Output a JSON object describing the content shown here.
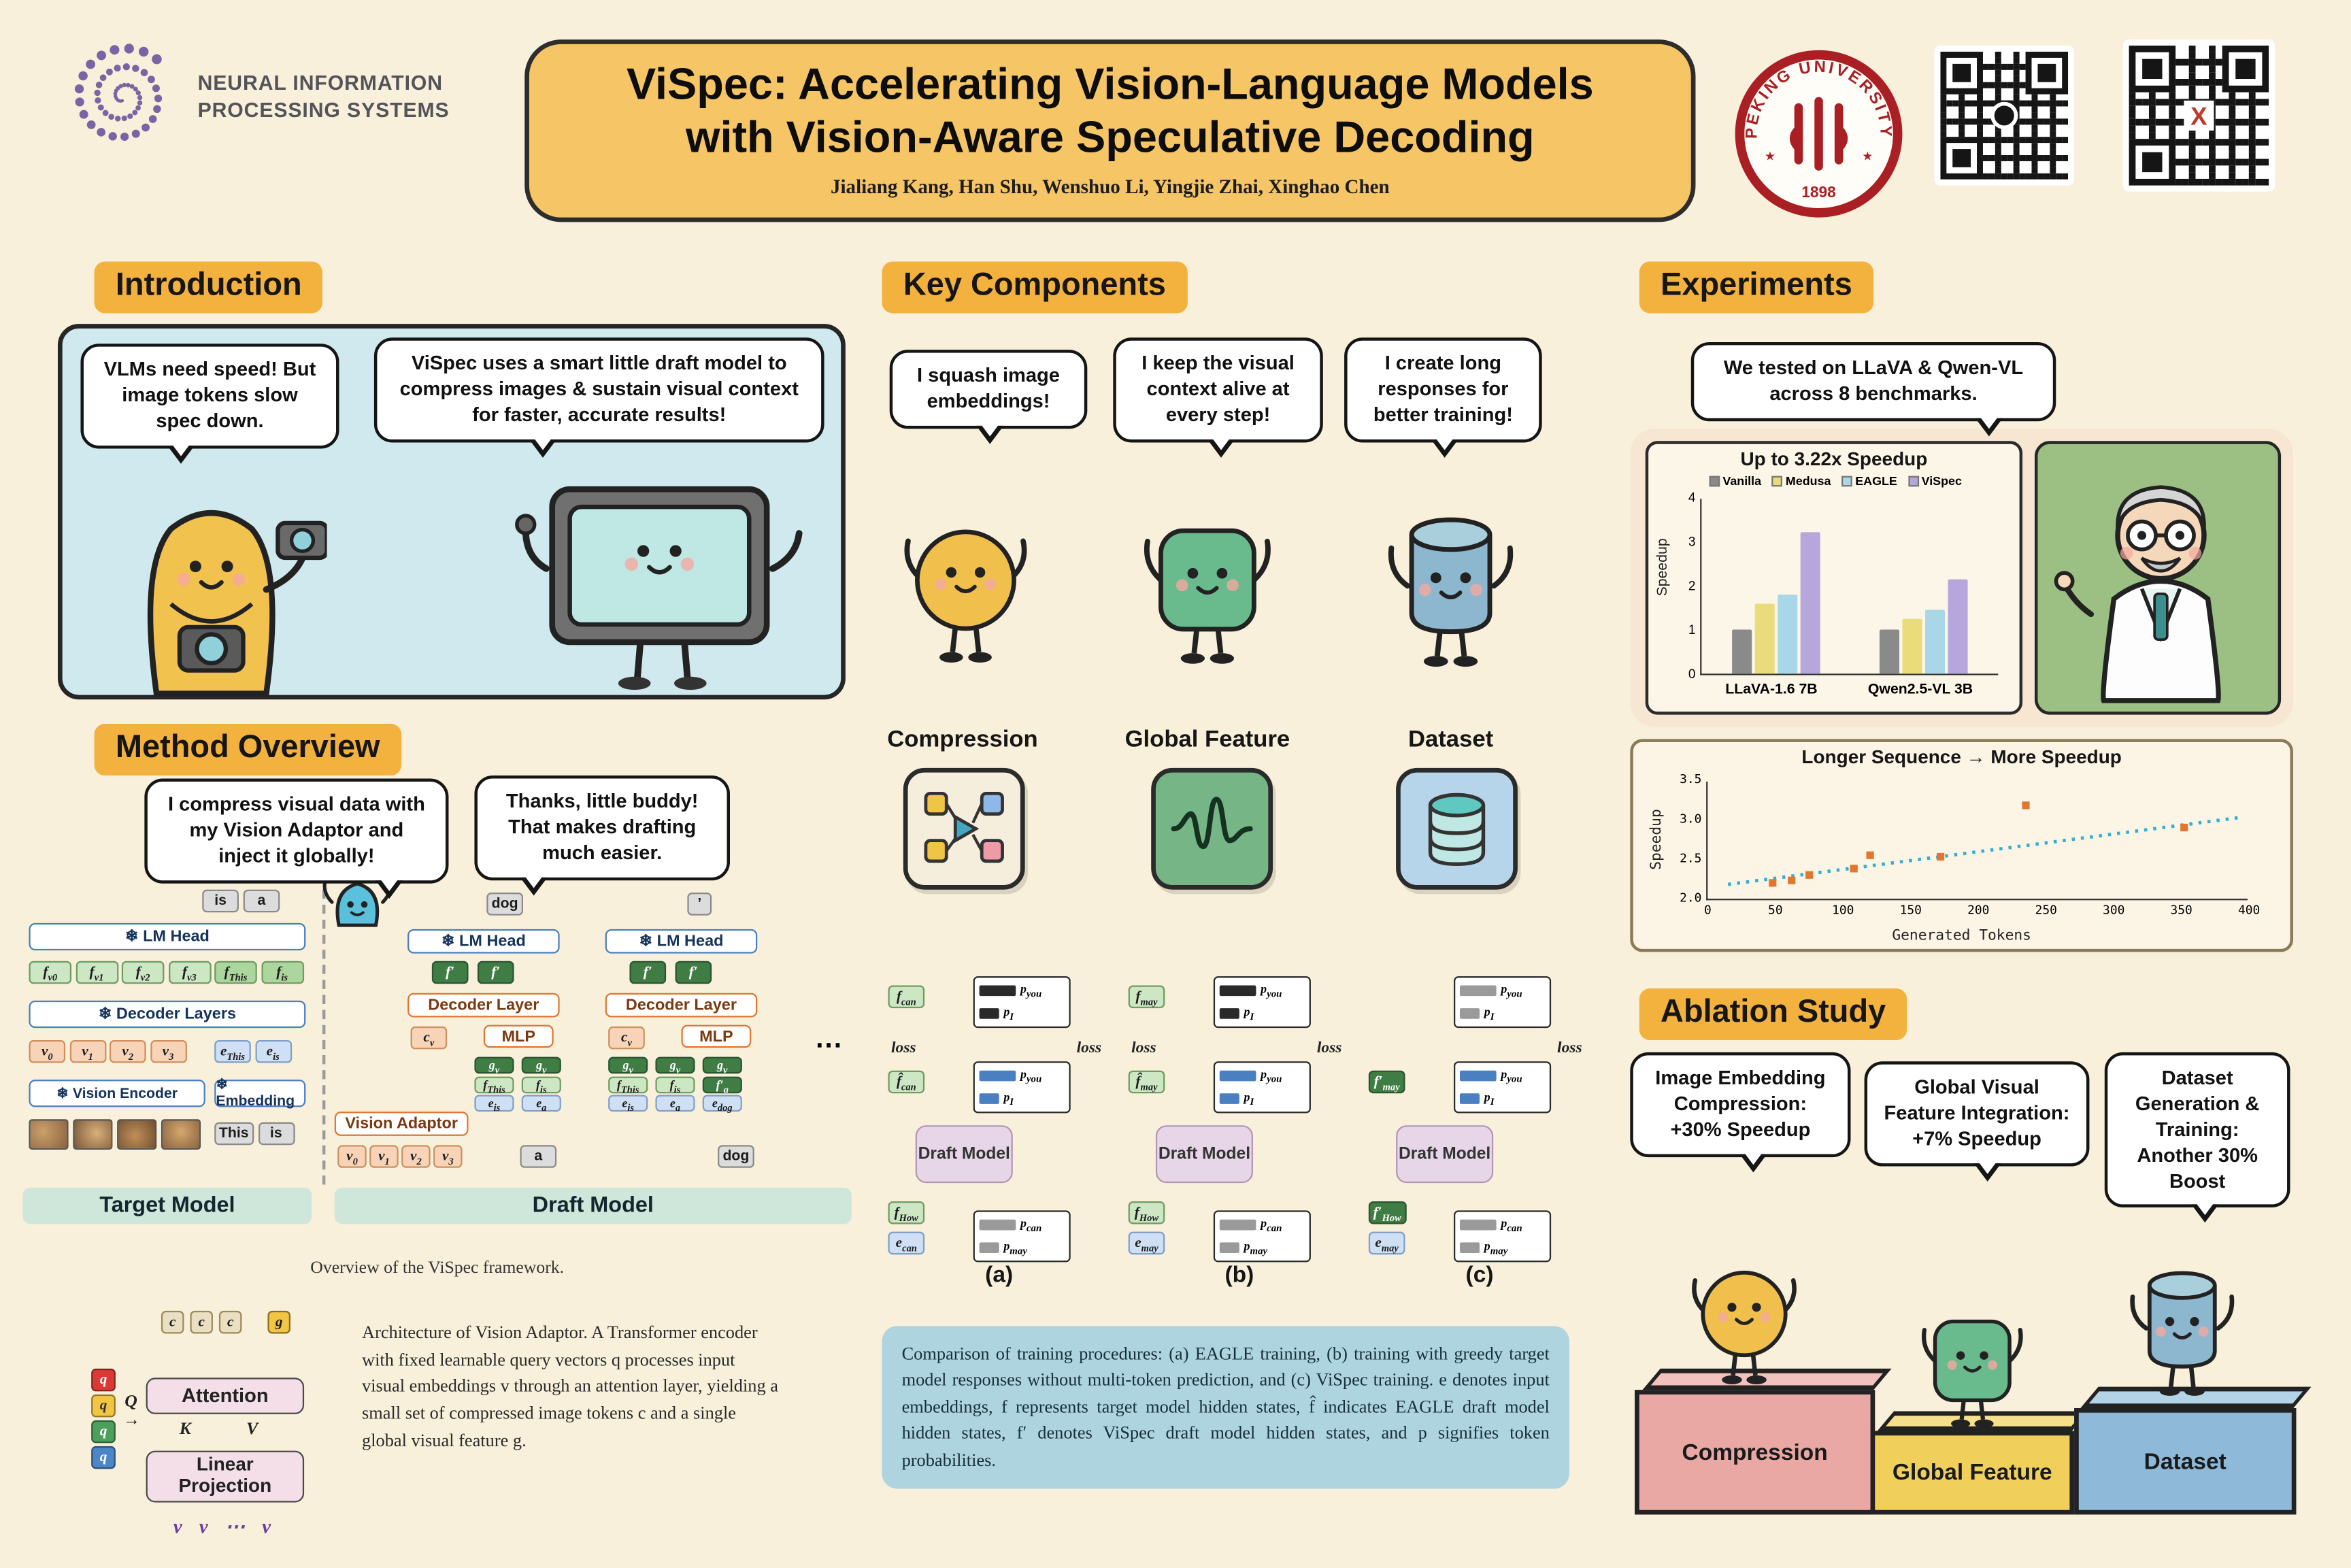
{
  "header": {
    "logo_line1": "NEURAL INFORMATION",
    "logo_line2": "PROCESSING SYSTEMS",
    "title_line1": "ViSpec: Accelerating Vision-Language Models",
    "title_line2": "with Vision-Aware Speculative Decoding",
    "authors": "Jialiang Kang, Han Shu, Wenshuo Li, Yingjie Zhai, Xinghao Chen",
    "seal_text": "PEKING UNIVERSITY",
    "seal_year": "1898"
  },
  "introduction": {
    "heading": "Introduction",
    "bubble_left": "VLMs need speed! But image tokens slow spec down.",
    "bubble_right": "ViSpec uses a smart little draft model to compress images & sustain visual context for faster, accurate results!"
  },
  "method": {
    "heading": "Method Overview",
    "bubble_left": "I compress visual data with my Vision Adaptor and inject it globally!",
    "bubble_right": "Thanks, little buddy! That makes drafting much easier.",
    "caption": "Overview of the ViSpec framework.",
    "target": {
      "label": "Target Model",
      "top_tokens": [
        "is",
        "a"
      ],
      "lm_head": "❄ LM Head",
      "f_tokens": [
        "f_v0",
        "f_v1",
        "f_v2",
        "f_v3",
        "f_This",
        "f_is"
      ],
      "decoder": "❄ Decoder Layers",
      "v_tokens": [
        "v_0",
        "v_1",
        "v_2",
        "v_3"
      ],
      "e_tokens": [
        "e_This",
        "e_is"
      ],
      "vision_encoder": "❄ Vision Encoder",
      "embedding": "❄ Embedding",
      "input_tokens": [
        "This",
        "is"
      ]
    },
    "draft": {
      "label": "Draft Model",
      "lm_head": "❄ LM Head",
      "decoder": "Decoder Layer",
      "mlp": "MLP",
      "cv": "c_v",
      "vision_adaptor": "Vision Adaptor",
      "va_inputs": [
        "v_0",
        "v_1",
        "v_2",
        "v_3"
      ],
      "out_token": "dog",
      "quote_token": "’",
      "ellipsis": "⋯",
      "columns": [
        {
          "f_out": [
            "f′",
            "f′"
          ],
          "stacks": [
            [
              "g_v",
              "f_This",
              "e_is"
            ],
            [
              "g_v",
              "f_is",
              "e_a"
            ]
          ],
          "input": "a"
        },
        {
          "f_out": [
            "f′",
            "f′"
          ],
          "stacks": [
            [
              "g_v",
              "f_This",
              "e_is"
            ],
            [
              "g_v",
              "f_is",
              "e_a"
            ],
            [
              "g_v",
              "f′_a",
              "e_dog"
            ]
          ],
          "input": "dog"
        }
      ]
    },
    "adaptor": {
      "c_tokens": [
        "c",
        "c",
        "c"
      ],
      "g_token": "g",
      "attention": "Attention",
      "linear_line1": "Linear",
      "linear_line2": "Projection",
      "q_tokens": [
        "q",
        "q",
        "q",
        "q"
      ],
      "q_label": "Q",
      "k_label": "K",
      "v_label": "V",
      "arrow": "→",
      "v_row": "v v ⋯ v",
      "description": "Architecture of Vision Adaptor. A Transformer encoder with fixed learnable query vectors q processes input visual embeddings v through an attention layer, yielding a small set of compressed image tokens c and a single global visual feature g."
    }
  },
  "key_components": {
    "heading": "Key Components",
    "items": [
      {
        "bubble": "I squash image embeddings!",
        "label": "Compression"
      },
      {
        "bubble": "I keep the visual context alive at every step!",
        "label": "Global Feature"
      },
      {
        "bubble": "I create long responses for better training!",
        "label": "Dataset"
      }
    ],
    "training": {
      "diagrams": [
        {
          "label": "(a)",
          "top_token": "f_can",
          "top_bars": [
            "p_you",
            "p_I"
          ],
          "top_style": "dark",
          "loss_left": "loss",
          "loss_right": "loss",
          "mid_token": "f̂_can",
          "mid_bars": [
            "p_you",
            "p_I"
          ],
          "draft": "Draft Model",
          "bot_token": "f_How",
          "bot_e": "e_can",
          "bot_bars": [
            "p_can",
            "p_may"
          ]
        },
        {
          "label": "(b)",
          "top_token": "f_may",
          "top_bars": [
            "p_you",
            "p_I"
          ],
          "top_style": "dark",
          "loss_left": "loss",
          "loss_right": "loss",
          "mid_token": "f̂_may",
          "mid_bars": [
            "p_you",
            "p_I"
          ],
          "draft": "Draft Model",
          "bot_token": "f_How",
          "bot_e": "e_may",
          "bot_bars": [
            "p_can",
            "p_may"
          ]
        },
        {
          "label": "(c)",
          "top_token": null,
          "top_bars": [
            "p_you",
            "p_I"
          ],
          "top_style": "gray",
          "loss_left": null,
          "loss_right": "loss",
          "mid_token": "f′_may",
          "mid_bars": [
            "p_you",
            "p_I"
          ],
          "draft": "Draft Model",
          "bot_token": "f′_How",
          "bot_e": "e_may",
          "bot_bars": [
            "p_can",
            "p_may"
          ]
        }
      ],
      "caption": "Comparison of training procedures: (a) EAGLE training, (b) training with greedy target model responses without multi-token prediction, and (c) ViSpec training. e denotes input embeddings, f represents target model hidden states, f̂ indicates EAGLE draft model hidden states, f′ denotes ViSpec draft model hidden states, and p signifies token probabilities."
    }
  },
  "experiments": {
    "heading": "Experiments",
    "bubble": "We tested on LLaVA & Qwen-VL across 8 benchmarks."
  },
  "ablation": {
    "heading": "Ablation Study",
    "bubbles": [
      "Image Embedding Compression: +30% Speedup",
      "Global Visual Feature Integration: +7% Speedup",
      "Dataset Generation & Training: Another 30% Boost"
    ],
    "podiums": [
      {
        "label": "Compression",
        "color": "#e9a8a4"
      },
      {
        "label": "Global Feature",
        "color": "#f0cf5a"
      },
      {
        "label": "Dataset",
        "color": "#8fb9d9"
      }
    ]
  },
  "chart_data": [
    {
      "type": "bar",
      "title": "Up to 3.22x Speedup",
      "categories": [
        "LLaVA-1.6 7B",
        "Qwen2.5-VL 3B"
      ],
      "series": [
        {
          "name": "Vanilla",
          "color": "#8a8a8a",
          "values": [
            1.0,
            1.0
          ]
        },
        {
          "name": "Medusa",
          "color": "#eadc7a",
          "values": [
            1.6,
            1.25
          ]
        },
        {
          "name": "EAGLE",
          "color": "#a9d7e8",
          "values": [
            1.8,
            1.45
          ]
        },
        {
          "name": "ViSpec",
          "color": "#b7a6dc",
          "values": [
            3.22,
            2.15
          ]
        }
      ],
      "ylabel": "Speedup",
      "ylim": [
        0,
        4
      ],
      "yticks": [
        0,
        1,
        2,
        3,
        4
      ],
      "legend_position": "top",
      "grid": false
    },
    {
      "type": "scatter",
      "title": "Longer Sequence → More Speedup",
      "xlabel": "Generated Tokens",
      "ylabel": "Speedup",
      "xlim": [
        0,
        400
      ],
      "ylim": [
        2.0,
        3.5
      ],
      "xticks": [
        0,
        50,
        100,
        150,
        200,
        250,
        300,
        350,
        400
      ],
      "yticks": [
        2.0,
        2.5,
        3.0,
        3.5
      ],
      "points": [
        [
          48,
          2.22
        ],
        [
          62,
          2.25
        ],
        [
          75,
          2.32
        ],
        [
          108,
          2.4
        ],
        [
          120,
          2.57
        ],
        [
          172,
          2.55
        ],
        [
          235,
          3.2
        ],
        [
          352,
          2.92
        ]
      ],
      "point_color": "#e0762f",
      "trendline": {
        "x1": 15,
        "y1": 2.2,
        "x2": 395,
        "y2": 3.05,
        "color": "#35aed6",
        "style": "dotted"
      }
    }
  ]
}
